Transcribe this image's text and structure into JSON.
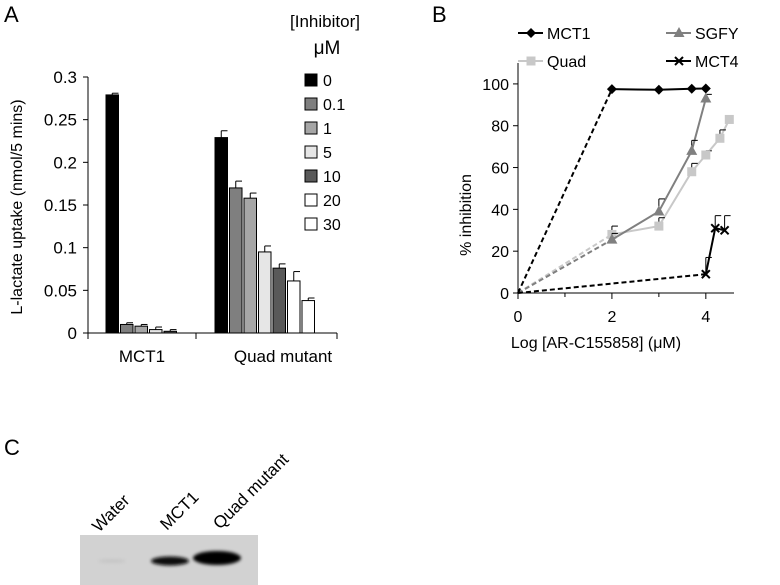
{
  "panels": {
    "a": "A",
    "b": "B",
    "c": "C"
  },
  "chart_data": [
    {
      "type": "bar",
      "panel": "A",
      "ylabel": "L-lactate uptake (nmol/5 mins)",
      "ylim": [
        0,
        0.3
      ],
      "yticks": [
        "0",
        "0.05",
        "0.1",
        "0.15",
        "0.2",
        "0.25",
        "0.3"
      ],
      "categories": [
        "MCT1",
        "Quad mutant"
      ],
      "legend_title": [
        "[Inhibitor]",
        "μM"
      ],
      "legend_position": "top-right",
      "series": [
        {
          "name": "0",
          "color": "#000000",
          "values": [
            0.279,
            0.229
          ],
          "errors": [
            0.002,
            0.008
          ]
        },
        {
          "name": "0.1",
          "color": "#7f7f7f",
          "values": [
            0.01,
            0.17
          ],
          "errors": [
            0.002,
            0.008
          ]
        },
        {
          "name": "1",
          "color": "#a6a6a6",
          "values": [
            0.008,
            0.158
          ],
          "errors": [
            0.002,
            0.006
          ]
        },
        {
          "name": "5",
          "color": "#e6e6e6",
          "values": [
            0.004,
            0.095
          ],
          "errors": [
            0.003,
            0.007
          ]
        },
        {
          "name": "10",
          "color": "#595959",
          "values": [
            0.002,
            0.076
          ],
          "errors": [
            0.002,
            0.005
          ]
        },
        {
          "name": "20",
          "color": "#ffffff",
          "values": [
            0.0,
            0.061
          ],
          "errors": [
            0.0,
            0.011
          ]
        },
        {
          "name": "30",
          "color": "#ffffff",
          "values": [
            0.0,
            0.038
          ],
          "errors": [
            0.0,
            0.003
          ]
        }
      ]
    },
    {
      "type": "line",
      "panel": "B",
      "xlabel": "Log [AR-C155858] (μM)",
      "ylabel": "% inhibition",
      "xlim": [
        0,
        4.6
      ],
      "ylim": [
        0,
        110
      ],
      "xticks": [
        "0",
        "2",
        "4"
      ],
      "yticks": [
        "0",
        "20",
        "40",
        "60",
        "80",
        "100"
      ],
      "legend_position": "top",
      "series": [
        {
          "name": "MCT1",
          "color": "#000000",
          "marker": "diamond",
          "x": [
            0,
            2,
            3,
            3.7,
            4
          ],
          "y": [
            0,
            97.5,
            97.2,
            97.7,
            97.8
          ],
          "errors": [
            0,
            0,
            0,
            0,
            0
          ]
        },
        {
          "name": "SGFY",
          "color": "#808080",
          "marker": "triangle",
          "x": [
            0,
            2,
            3,
            3.7,
            4
          ],
          "y": [
            0,
            25.5,
            39,
            68,
            93
          ],
          "errors": [
            0,
            3,
            6,
            5,
            2
          ]
        },
        {
          "name": "Quad",
          "color": "#c8c8c8",
          "marker": "square",
          "x": [
            0,
            2,
            3,
            3.7,
            4,
            4.3,
            4.5
          ],
          "y": [
            0,
            28,
            32,
            58,
            66,
            74,
            83
          ],
          "errors": [
            0,
            4,
            4,
            4,
            2,
            4,
            0
          ]
        },
        {
          "name": "MCT4",
          "color": "#000000",
          "marker": "x",
          "x": [
            0,
            4,
            4.2,
            4.4
          ],
          "y": [
            0,
            9,
            31,
            30
          ],
          "errors": [
            0,
            8,
            6,
            7
          ]
        }
      ]
    }
  ],
  "western_blot": {
    "lanes": [
      "Water",
      "MCT1",
      "Quad mutant"
    ]
  }
}
